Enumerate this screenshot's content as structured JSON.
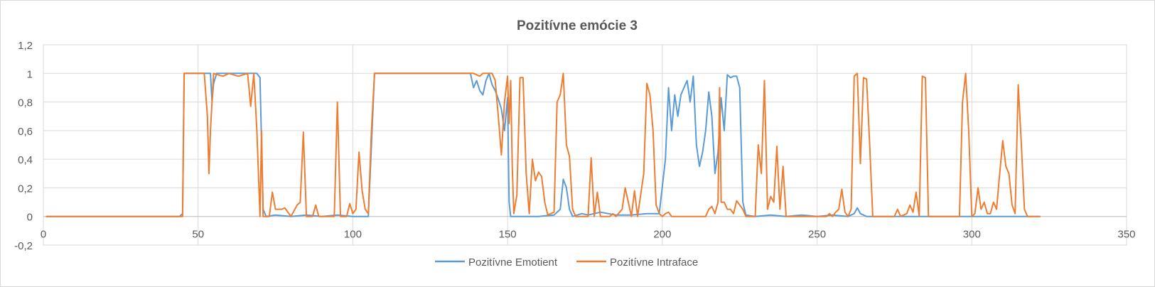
{
  "chart_data": {
    "type": "line",
    "title": "Pozitívne emócie 3",
    "xlim": [
      0,
      350
    ],
    "ylim": [
      -0.2,
      1.2
    ],
    "x_ticks": [
      0,
      50,
      100,
      150,
      200,
      250,
      300,
      350
    ],
    "x_tick_labels": [
      "0",
      "50",
      "100",
      "150",
      "200",
      "250",
      "300",
      "350"
    ],
    "y_ticks": [
      -0.2,
      0,
      0.2,
      0.4,
      0.6,
      0.8,
      1,
      1.2
    ],
    "y_tick_labels": [
      "-0,2",
      "0",
      "0,2",
      "0,4",
      "0,6",
      "0,8",
      "1",
      "1,2"
    ],
    "grid": true,
    "legend_position": "bottom",
    "series": [
      {
        "name": "Pozitívne Emotient",
        "color": "#5b9bd5",
        "points": [
          [
            1,
            0
          ],
          [
            20,
            0
          ],
          [
            44,
            0
          ],
          [
            45,
            0.02
          ],
          [
            45.5,
            1
          ],
          [
            54,
            1
          ],
          [
            54.5,
            0.8
          ],
          [
            55,
            0.93
          ],
          [
            56,
            1
          ],
          [
            68,
            1
          ],
          [
            69,
            1
          ],
          [
            70,
            0.97
          ],
          [
            71,
            0.05
          ],
          [
            72,
            0
          ],
          [
            75,
            0.01
          ],
          [
            80,
            0
          ],
          [
            85,
            0.01
          ],
          [
            90,
            0
          ],
          [
            95,
            0.01
          ],
          [
            100,
            0
          ],
          [
            105,
            0
          ],
          [
            106,
            0.5
          ],
          [
            107,
            1
          ],
          [
            110,
            1
          ],
          [
            120,
            1
          ],
          [
            130,
            1
          ],
          [
            138,
            1
          ],
          [
            139,
            0.9
          ],
          [
            140,
            0.95
          ],
          [
            141,
            0.88
          ],
          [
            142,
            0.85
          ],
          [
            143,
            0.95
          ],
          [
            144,
            1
          ],
          [
            145,
            0.92
          ],
          [
            146,
            0.88
          ],
          [
            147,
            0.82
          ],
          [
            148,
            0.75
          ],
          [
            149,
            0.6
          ],
          [
            150,
            0.83
          ],
          [
            150.5,
            0.1
          ],
          [
            151,
            0
          ],
          [
            160,
            0
          ],
          [
            165,
            0.01
          ],
          [
            167,
            0.05
          ],
          [
            168,
            0.26
          ],
          [
            169,
            0.2
          ],
          [
            170,
            0.05
          ],
          [
            171,
            0
          ],
          [
            174,
            0.02
          ],
          [
            176,
            0.01
          ],
          [
            180,
            0.03
          ],
          [
            185,
            0.01
          ],
          [
            190,
            0.01
          ],
          [
            195,
            0.02
          ],
          [
            199,
            0.02
          ],
          [
            201,
            0.4
          ],
          [
            202,
            0.9
          ],
          [
            203,
            0.6
          ],
          [
            204,
            0.85
          ],
          [
            205,
            0.7
          ],
          [
            206,
            0.85
          ],
          [
            207,
            0.9
          ],
          [
            208,
            0.95
          ],
          [
            209,
            0.8
          ],
          [
            210,
            0.98
          ],
          [
            211,
            0.5
          ],
          [
            212,
            0.35
          ],
          [
            213,
            0.45
          ],
          [
            214,
            0.6
          ],
          [
            215,
            0.87
          ],
          [
            216,
            0.7
          ],
          [
            217,
            0.3
          ],
          [
            218,
            0.45
          ],
          [
            219,
            0.83
          ],
          [
            220,
            0.6
          ],
          [
            221,
            0.99
          ],
          [
            222,
            0.97
          ],
          [
            223,
            0.98
          ],
          [
            224,
            0.98
          ],
          [
            225,
            0.9
          ],
          [
            226,
            0.1
          ],
          [
            227,
            0.01
          ],
          [
            230,
            0
          ],
          [
            235,
            0.01
          ],
          [
            240,
            0
          ],
          [
            245,
            0.01
          ],
          [
            250,
            0
          ],
          [
            255,
            0.01
          ],
          [
            260,
            0
          ],
          [
            262,
            0.02
          ],
          [
            263,
            0.06
          ],
          [
            264,
            0.02
          ],
          [
            266,
            0
          ],
          [
            270,
            0
          ],
          [
            280,
            0
          ],
          [
            290,
            0
          ],
          [
            300,
            0
          ],
          [
            310,
            0
          ],
          [
            320,
            0
          ],
          [
            322,
            0
          ]
        ]
      },
      {
        "name": "Pozitívne Intraface",
        "color": "#ed7d31",
        "points": [
          [
            1,
            0
          ],
          [
            20,
            0
          ],
          [
            44,
            0
          ],
          [
            45,
            0
          ],
          [
            45.5,
            1
          ],
          [
            52,
            1
          ],
          [
            53,
            0.7
          ],
          [
            53.5,
            0.3
          ],
          [
            54,
            0.6
          ],
          [
            55,
            1
          ],
          [
            58,
            0.98
          ],
          [
            60,
            1
          ],
          [
            63,
            0.98
          ],
          [
            66,
            1
          ],
          [
            67,
            0.77
          ],
          [
            68,
            1
          ],
          [
            69,
            0.6
          ],
          [
            70,
            0
          ],
          [
            70.5,
            0.6
          ],
          [
            71,
            0
          ],
          [
            73,
            0
          ],
          [
            74,
            0.17
          ],
          [
            75,
            0.05
          ],
          [
            77,
            0.05
          ],
          [
            78,
            0.06
          ],
          [
            80,
            0
          ],
          [
            82,
            0.08
          ],
          [
            83,
            0.1
          ],
          [
            84,
            0.59
          ],
          [
            85,
            0
          ],
          [
            87,
            0
          ],
          [
            88,
            0.08
          ],
          [
            89,
            0
          ],
          [
            94,
            0
          ],
          [
            95,
            0.8
          ],
          [
            96,
            0
          ],
          [
            98,
            0
          ],
          [
            99,
            0.09
          ],
          [
            100,
            0.02
          ],
          [
            101,
            0.05
          ],
          [
            102,
            0.45
          ],
          [
            103,
            0.18
          ],
          [
            104,
            0.05
          ],
          [
            105,
            0.02
          ],
          [
            106,
            0.6
          ],
          [
            107,
            1
          ],
          [
            110,
            1
          ],
          [
            120,
            1
          ],
          [
            130,
            1
          ],
          [
            139,
            1
          ],
          [
            141,
            0.98
          ],
          [
            142,
            1
          ],
          [
            145,
            1
          ],
          [
            146,
            0.95
          ],
          [
            147,
            0.7
          ],
          [
            148,
            0.43
          ],
          [
            149,
            0.8
          ],
          [
            150,
            0.98
          ],
          [
            150.5,
            0.65
          ],
          [
            151,
            0.95
          ],
          [
            151.5,
            0.35
          ],
          [
            152,
            0.02
          ],
          [
            153,
            0.15
          ],
          [
            154,
            0.97
          ],
          [
            155,
            0.97
          ],
          [
            156,
            0.3
          ],
          [
            157,
            0.02
          ],
          [
            158,
            0.4
          ],
          [
            159,
            0.25
          ],
          [
            160,
            0.31
          ],
          [
            161,
            0.28
          ],
          [
            162,
            0.1
          ],
          [
            163,
            0.01
          ],
          [
            165,
            0.03
          ],
          [
            166,
            0.8
          ],
          [
            167,
            0.85
          ],
          [
            168,
            1
          ],
          [
            169,
            0.5
          ],
          [
            170,
            0.42
          ],
          [
            171,
            0.05
          ],
          [
            172,
            0
          ],
          [
            174,
            0
          ],
          [
            176,
            0
          ],
          [
            177,
            0.41
          ],
          [
            178,
            0
          ],
          [
            179,
            0.17
          ],
          [
            180,
            0
          ],
          [
            183,
            0
          ],
          [
            184,
            0.02
          ],
          [
            185,
            0
          ],
          [
            187,
            0.05
          ],
          [
            188,
            0.2
          ],
          [
            189,
            0.1
          ],
          [
            190,
            0
          ],
          [
            191,
            0.18
          ],
          [
            192,
            0
          ],
          [
            194,
            0.3
          ],
          [
            195,
            0.93
          ],
          [
            196,
            0.85
          ],
          [
            197,
            0.6
          ],
          [
            198,
            0.08
          ],
          [
            199,
            0.02
          ],
          [
            200,
            0
          ],
          [
            201,
            0.02
          ],
          [
            202,
            0.03
          ],
          [
            203,
            0
          ],
          [
            206,
            0
          ],
          [
            210,
            0
          ],
          [
            214,
            0
          ],
          [
            215,
            0.05
          ],
          [
            216,
            0.07
          ],
          [
            217,
            0.02
          ],
          [
            218,
            0.1
          ],
          [
            218.5,
            0.9
          ],
          [
            219,
            0.1
          ],
          [
            220,
            0.1
          ],
          [
            221,
            0.05
          ],
          [
            222,
            0.05
          ],
          [
            223,
            0.02
          ],
          [
            224,
            0.11
          ],
          [
            225,
            0.08
          ],
          [
            226,
            0.05
          ],
          [
            227,
            0
          ],
          [
            230,
            0
          ],
          [
            231,
            0.5
          ],
          [
            232,
            0.3
          ],
          [
            233,
            0.95
          ],
          [
            234,
            0.05
          ],
          [
            235,
            0.14
          ],
          [
            236,
            0.1
          ],
          [
            237,
            0.49
          ],
          [
            238,
            0.05
          ],
          [
            239,
            0.35
          ],
          [
            240,
            0
          ],
          [
            245,
            0
          ],
          [
            250,
            0
          ],
          [
            253,
            0
          ],
          [
            254,
            0.02
          ],
          [
            255,
            0
          ],
          [
            256,
            0.03
          ],
          [
            257,
            0.05
          ],
          [
            258,
            0.19
          ],
          [
            259,
            0.03
          ],
          [
            260,
            0
          ],
          [
            261,
            0.05
          ],
          [
            262,
            0.98
          ],
          [
            263,
            1
          ],
          [
            264,
            0.37
          ],
          [
            265,
            0.97
          ],
          [
            266,
            0.96
          ],
          [
            267,
            0.5
          ],
          [
            268,
            0
          ],
          [
            270,
            0
          ],
          [
            275,
            0
          ],
          [
            276,
            0.05
          ],
          [
            277,
            0
          ],
          [
            279,
            0.02
          ],
          [
            280,
            0.08
          ],
          [
            281,
            0.03
          ],
          [
            282,
            0.17
          ],
          [
            283,
            0
          ],
          [
            284,
            0.98
          ],
          [
            285,
            0.97
          ],
          [
            286,
            0
          ],
          [
            288,
            0
          ],
          [
            296,
            0
          ],
          [
            297,
            0.8
          ],
          [
            298,
            1
          ],
          [
            299,
            0.6
          ],
          [
            300,
            0
          ],
          [
            301,
            0.02
          ],
          [
            302,
            0.2
          ],
          [
            303,
            0.05
          ],
          [
            304,
            0.1
          ],
          [
            305,
            0.02
          ],
          [
            306,
            0.02
          ],
          [
            307,
            0.1
          ],
          [
            308,
            0.05
          ],
          [
            309,
            0.3
          ],
          [
            310,
            0.53
          ],
          [
            311,
            0.35
          ],
          [
            312,
            0.3
          ],
          [
            313,
            0.08
          ],
          [
            314,
            0.02
          ],
          [
            315,
            0.92
          ],
          [
            316,
            0.5
          ],
          [
            317,
            0.05
          ],
          [
            318,
            0
          ],
          [
            321,
            0
          ],
          [
            322,
            0
          ]
        ]
      }
    ]
  }
}
